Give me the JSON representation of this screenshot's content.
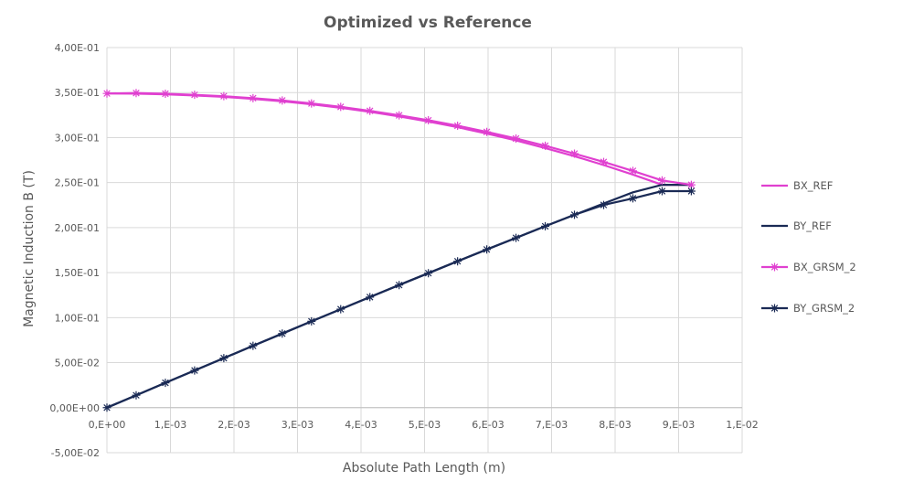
{
  "chart_data": {
    "type": "line",
    "title": "Optimized vs Reference",
    "xlabel": "Absolute Path Length (m)",
    "ylabel": "Magnetic Induction B (T)",
    "xlim": [
      0,
      0.01
    ],
    "ylim": [
      -0.05,
      0.4
    ],
    "x_ticks": [
      0,
      0.001,
      0.002,
      0.003,
      0.004,
      0.005,
      0.006,
      0.007,
      0.008,
      0.009,
      0.01
    ],
    "x_tick_labels": [
      "0,E+00",
      "1,E-03",
      "2,E-03",
      "3,E-03",
      "4,E-03",
      "5,E-03",
      "6,E-03",
      "7,E-03",
      "8,E-03",
      "9,E-03",
      "1,E-02"
    ],
    "y_ticks": [
      -0.05,
      0,
      0.05,
      0.1,
      0.15,
      0.2,
      0.25,
      0.3,
      0.35,
      0.4
    ],
    "y_tick_labels": [
      "-5,00E-02",
      "0,00E+00",
      "5,00E-02",
      "1,00E-01",
      "1,50E-01",
      "2,00E-01",
      "2,50E-01",
      "3,00E-01",
      "3,50E-01",
      "4,00E-01"
    ],
    "grid": "vertical and horizontal",
    "legend_position": "right",
    "series": [
      {
        "name": "BX_REF",
        "color": "#e040d0",
        "marker": "none",
        "x": [
          0,
          0.00046,
          0.00092,
          0.00138,
          0.00184,
          0.0023,
          0.00276,
          0.00322,
          0.00368,
          0.00414,
          0.0046,
          0.00506,
          0.00552,
          0.00598,
          0.00644,
          0.0069,
          0.00736,
          0.00782,
          0.00828,
          0.00874,
          0.0092
        ],
        "y": [
          0.349,
          0.3488,
          0.348,
          0.3468,
          0.3452,
          0.343,
          0.3403,
          0.337,
          0.3331,
          0.3286,
          0.3235,
          0.3178,
          0.3115,
          0.3045,
          0.2968,
          0.2884,
          0.2793,
          0.2695,
          0.2589,
          0.2475,
          0.2475
        ]
      },
      {
        "name": "BY_REF",
        "color": "#1a2a55",
        "marker": "none",
        "x": [
          0,
          0.00046,
          0.00092,
          0.00138,
          0.00184,
          0.0023,
          0.00276,
          0.00322,
          0.00368,
          0.00414,
          0.0046,
          0.00506,
          0.00552,
          0.00598,
          0.00644,
          0.0069,
          0.00736,
          0.00782,
          0.00828,
          0.00874,
          0.0092
        ],
        "y": [
          0,
          0.0138,
          0.0276,
          0.0413,
          0.055,
          0.0687,
          0.0823,
          0.0959,
          0.1094,
          0.1228,
          0.1362,
          0.1494,
          0.1626,
          0.1757,
          0.1886,
          0.2015,
          0.2142,
          0.2268,
          0.2392,
          0.2475,
          0.2475
        ]
      },
      {
        "name": "BX_GRSM_2",
        "color": "#e040d0",
        "marker": "asterisk",
        "x": [
          0,
          0.00046,
          0.00092,
          0.00138,
          0.00184,
          0.0023,
          0.00276,
          0.00322,
          0.00368,
          0.00414,
          0.0046,
          0.00506,
          0.00552,
          0.00598,
          0.00644,
          0.0069,
          0.00736,
          0.00782,
          0.00828,
          0.00874,
          0.0092
        ],
        "y": [
          0.349,
          0.3495,
          0.3487,
          0.3475,
          0.346,
          0.3438,
          0.3412,
          0.3379,
          0.3341,
          0.3297,
          0.3247,
          0.3192,
          0.3131,
          0.3063,
          0.2989,
          0.2909,
          0.2822,
          0.2729,
          0.263,
          0.2524,
          0.2475
        ]
      },
      {
        "name": "BY_GRSM_2",
        "color": "#1a2a55",
        "marker": "asterisk",
        "x": [
          0,
          0.00046,
          0.00092,
          0.00138,
          0.00184,
          0.0023,
          0.00276,
          0.00322,
          0.00368,
          0.00414,
          0.0046,
          0.00506,
          0.00552,
          0.00598,
          0.00644,
          0.0069,
          0.00736,
          0.00782,
          0.00828,
          0.00874,
          0.0092
        ],
        "y": [
          0,
          0.0138,
          0.0276,
          0.0413,
          0.055,
          0.0687,
          0.0823,
          0.0959,
          0.1094,
          0.1228,
          0.1362,
          0.1494,
          0.1626,
          0.1757,
          0.1886,
          0.2015,
          0.2142,
          0.2252,
          0.2325,
          0.2405,
          0.2405
        ]
      }
    ]
  }
}
